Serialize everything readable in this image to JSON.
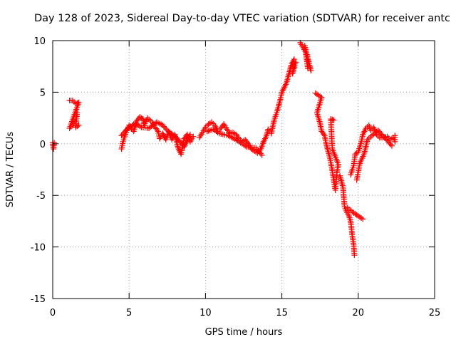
{
  "chart_data": {
    "type": "scatter",
    "title": "Day 128 of 2023, Sidereal Day-to-day VTEC variation (SDTVAR) for receiver antc",
    "xlabel": "GPS time / hours",
    "ylabel": "SDTVAR / TECUs",
    "xlim": [
      0,
      25
    ],
    "ylim": [
      -15,
      10
    ],
    "xticks": [
      "0",
      "5",
      "10",
      "15",
      "20",
      "25"
    ],
    "yticks": [
      "-15",
      "-10",
      "-5",
      "0",
      "5",
      "10"
    ],
    "grid": true,
    "marker": "+",
    "series": [
      {
        "name": "SDTVAR",
        "color": "#ff0000",
        "segments": [
          [
            [
              0.0,
              0.1
            ],
            [
              0.05,
              -0.5
            ],
            [
              0.1,
              0.1
            ]
          ],
          [
            [
              1.1,
              4.2
            ],
            [
              1.3,
              4.2
            ],
            [
              1.5,
              3.9
            ],
            [
              1.7,
              4.0
            ],
            [
              1.1,
              1.5
            ],
            [
              1.3,
              1.8
            ],
            [
              1.5,
              2.3
            ],
            [
              1.6,
              3.0
            ],
            [
              1.5,
              1.6
            ],
            [
              1.7,
              1.8
            ]
          ],
          [
            [
              4.5,
              -0.5
            ],
            [
              4.6,
              0.2
            ],
            [
              4.8,
              1.1
            ],
            [
              5.0,
              1.8
            ],
            [
              5.3,
              1.2
            ],
            [
              5.5,
              2.2
            ],
            [
              5.7,
              2.6
            ],
            [
              5.9,
              2.4
            ],
            [
              6.0,
              1.8
            ],
            [
              6.2,
              2.5
            ],
            [
              6.5,
              2.1
            ],
            [
              6.7,
              1.6
            ],
            [
              6.9,
              1.2
            ],
            [
              7.0,
              0.5
            ],
            [
              7.2,
              1.0
            ],
            [
              7.4,
              0.4
            ],
            [
              7.6,
              1.1
            ],
            [
              7.8,
              0.4
            ],
            [
              8.0,
              0.9
            ],
            [
              8.2,
              -0.4
            ],
            [
              8.4,
              -1.0
            ],
            [
              8.6,
              0.5
            ],
            [
              8.8,
              0.9
            ],
            [
              9.0,
              0.2
            ],
            [
              9.2,
              0.7
            ]
          ],
          [
            [
              4.5,
              0.8
            ],
            [
              4.9,
              1.5
            ],
            [
              5.4,
              2.0
            ],
            [
              5.8,
              1.6
            ],
            [
              6.3,
              1.5
            ],
            [
              6.8,
              2.1
            ],
            [
              7.2,
              1.8
            ],
            [
              7.5,
              1.3
            ],
            [
              8.1,
              0.6
            ],
            [
              8.6,
              -0.3
            ],
            [
              9.0,
              0.9
            ]
          ],
          [
            [
              9.6,
              0.6
            ],
            [
              9.8,
              1.1
            ],
            [
              10.0,
              1.6
            ],
            [
              10.2,
              1.9
            ],
            [
              10.4,
              2.1
            ],
            [
              10.6,
              1.8
            ],
            [
              10.8,
              1.2
            ],
            [
              11.0,
              1.5
            ],
            [
              11.2,
              1.9
            ],
            [
              11.4,
              1.4
            ],
            [
              11.6,
              1.0
            ],
            [
              11.8,
              1.1
            ],
            [
              12.0,
              0.9
            ],
            [
              12.2,
              0.5
            ],
            [
              12.4,
              0.2
            ],
            [
              12.6,
              0.4
            ],
            [
              12.8,
              0.0
            ],
            [
              13.0,
              -0.5
            ],
            [
              13.2,
              -0.7
            ],
            [
              13.4,
              -0.9
            ],
            [
              13.6,
              -0.6
            ],
            [
              13.8,
              0.2
            ],
            [
              14.0,
              0.8
            ],
            [
              14.1,
              1.4
            ]
          ],
          [
            [
              10.1,
              1.2
            ],
            [
              10.5,
              1.4
            ],
            [
              10.9,
              1.0
            ],
            [
              11.5,
              0.8
            ],
            [
              12.1,
              0.3
            ],
            [
              12.7,
              -0.3
            ],
            [
              13.3,
              -0.4
            ],
            [
              13.7,
              -1.1
            ]
          ],
          [
            [
              14.3,
              1.0
            ],
            [
              14.5,
              2.3
            ],
            [
              14.7,
              3.2
            ],
            [
              14.9,
              4.3
            ],
            [
              15.0,
              5.0
            ],
            [
              15.3,
              5.9
            ],
            [
              15.5,
              7.0
            ],
            [
              15.6,
              7.6
            ],
            [
              15.8,
              8.2
            ],
            [
              15.7,
              6.8
            ],
            [
              15.9,
              7.9
            ]
          ],
          [
            [
              16.2,
              9.8
            ],
            [
              16.4,
              9.3
            ],
            [
              16.6,
              8.8
            ],
            [
              16.7,
              8.0
            ],
            [
              16.8,
              7.6
            ],
            [
              16.9,
              7.1
            ],
            [
              16.5,
              9.5
            ],
            [
              16.7,
              7.3
            ]
          ],
          [
            [
              17.2,
              4.9
            ],
            [
              17.4,
              4.7
            ],
            [
              17.6,
              4.5
            ],
            [
              17.3,
              3.0
            ],
            [
              17.5,
              2.0
            ],
            [
              17.6,
              1.2
            ],
            [
              17.8,
              0.8
            ],
            [
              17.9,
              0.0
            ],
            [
              18.0,
              -0.6
            ],
            [
              18.1,
              -1.1
            ],
            [
              18.2,
              -1.8
            ],
            [
              18.3,
              -2.6
            ],
            [
              18.4,
              -3.6
            ],
            [
              18.5,
              -4.5
            ],
            [
              18.6,
              -2.8
            ],
            [
              18.7,
              -2.0
            ],
            [
              18.3,
              -0.5
            ],
            [
              18.2,
              2.4
            ],
            [
              18.4,
              2.3
            ]
          ],
          [
            [
              18.8,
              -3.1
            ],
            [
              19.0,
              -4.2
            ],
            [
              19.1,
              -6.1
            ],
            [
              19.2,
              -6.5
            ],
            [
              19.4,
              -7.0
            ],
            [
              19.5,
              -7.5
            ],
            [
              19.6,
              -8.8
            ],
            [
              19.7,
              -9.8
            ],
            [
              19.75,
              -10.8
            ]
          ],
          [
            [
              19.3,
              -6.2
            ],
            [
              19.6,
              -6.6
            ],
            [
              19.8,
              -6.8
            ],
            [
              20.0,
              -7.0
            ],
            [
              20.2,
              -7.2
            ],
            [
              20.3,
              -7.3
            ]
          ],
          [
            [
              19.5,
              -3.0
            ],
            [
              19.7,
              -2.1
            ],
            [
              19.8,
              -1.0
            ],
            [
              20.0,
              -0.8
            ],
            [
              20.2,
              0.2
            ],
            [
              20.3,
              0.9
            ],
            [
              20.5,
              1.5
            ],
            [
              20.7,
              1.8
            ],
            [
              20.8,
              1.3
            ],
            [
              21.0,
              1.6
            ],
            [
              21.2,
              0.9
            ],
            [
              21.4,
              0.6
            ],
            [
              21.6,
              0.6
            ],
            [
              21.9,
              0.7
            ],
            [
              22.1,
              0.4
            ],
            [
              22.3,
              0.6
            ],
            [
              22.4,
              0.2
            ],
            [
              22.4,
              0.8
            ]
          ],
          [
            [
              19.9,
              -3.5
            ],
            [
              20.1,
              -1.9
            ],
            [
              20.4,
              -0.9
            ],
            [
              20.6,
              0.4
            ],
            [
              20.9,
              0.8
            ],
            [
              21.3,
              1.3
            ],
            [
              22.2,
              -0.2
            ]
          ]
        ]
      }
    ]
  }
}
